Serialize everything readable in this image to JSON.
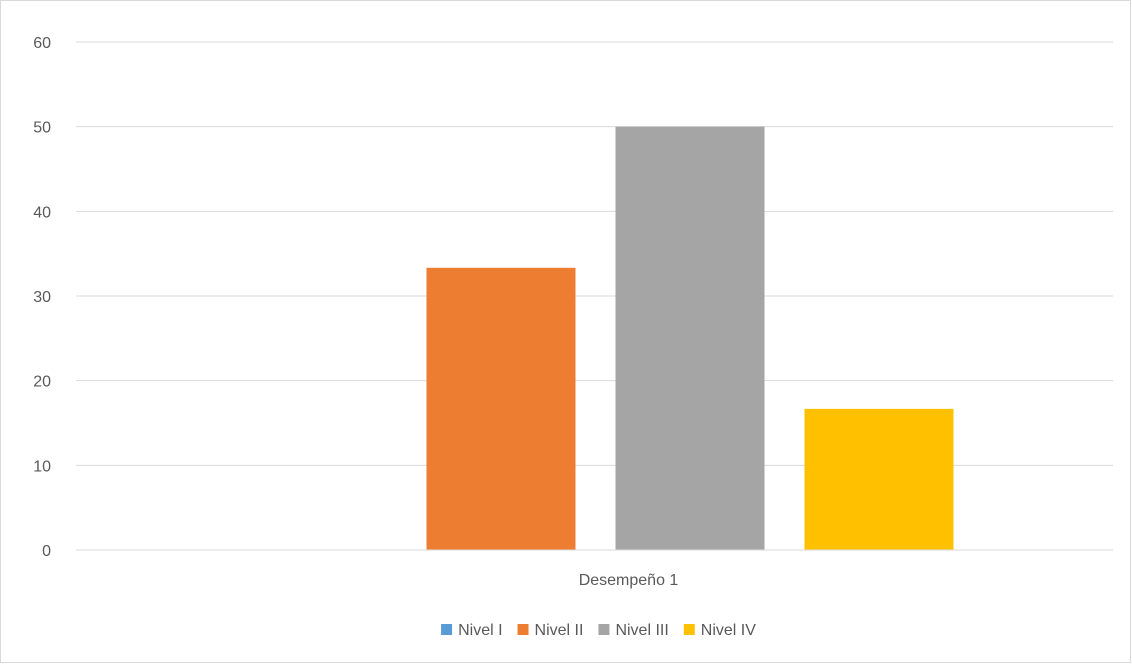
{
  "chart_data": {
    "type": "bar",
    "categories": [
      "Desempeño 1"
    ],
    "series": [
      {
        "name": "Nivel I",
        "values": [
          0
        ],
        "color": "#5b9bd5"
      },
      {
        "name": "Nivel II",
        "values": [
          33.33
        ],
        "color": "#ed7d31"
      },
      {
        "name": "Nivel III",
        "values": [
          50
        ],
        "color": "#a5a5a5"
      },
      {
        "name": "Nivel IV",
        "values": [
          16.67
        ],
        "color": "#ffc000"
      }
    ],
    "yticks": [
      "0",
      "10",
      "20",
      "30",
      "40",
      "50",
      "60"
    ],
    "ylim": [
      0,
      60
    ],
    "title": "",
    "xlabel": "",
    "ylabel": "",
    "grid": true,
    "legend": "bottom"
  }
}
